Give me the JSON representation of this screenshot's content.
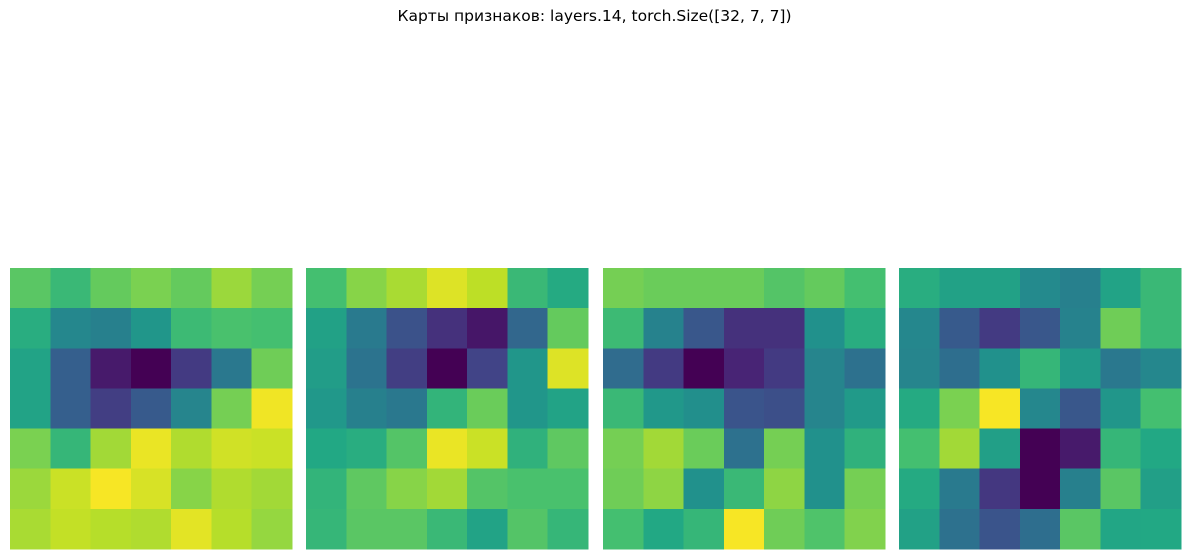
{
  "figure": {
    "title": "Карты признаков: layers.14, torch.Size([32, 7, 7])"
  },
  "chart_data": {
    "type": "heatmap",
    "title": "Карты признаков: layers.14, torch.Size([32, 7, 7])",
    "colormap": "viridis",
    "axes": "off",
    "grid": false,
    "value_range": [
      0,
      1
    ],
    "maps": [
      {
        "values": [
          [
            0.74,
            0.67,
            0.76,
            0.8,
            0.76,
            0.85,
            0.79
          ],
          [
            0.62,
            0.46,
            0.43,
            0.52,
            0.68,
            0.71,
            0.7
          ],
          [
            0.58,
            0.3,
            0.07,
            0.0,
            0.17,
            0.4,
            0.78
          ],
          [
            0.58,
            0.3,
            0.18,
            0.28,
            0.45,
            0.79,
            0.98
          ],
          [
            0.8,
            0.66,
            0.86,
            0.97,
            0.88,
            0.93,
            0.92
          ],
          [
            0.85,
            0.92,
            0.99,
            0.94,
            0.82,
            0.88,
            0.86
          ],
          [
            0.87,
            0.91,
            0.89,
            0.88,
            0.96,
            0.89,
            0.84
          ]
        ]
      },
      {
        "values": [
          [
            0.7,
            0.82,
            0.87,
            0.95,
            0.9,
            0.67,
            0.61
          ],
          [
            0.57,
            0.41,
            0.25,
            0.14,
            0.06,
            0.33,
            0.76
          ],
          [
            0.55,
            0.38,
            0.18,
            0.0,
            0.2,
            0.52,
            0.95
          ],
          [
            0.53,
            0.43,
            0.4,
            0.65,
            0.77,
            0.52,
            0.58
          ],
          [
            0.6,
            0.62,
            0.73,
            0.97,
            0.92,
            0.64,
            0.75
          ],
          [
            0.65,
            0.75,
            0.82,
            0.86,
            0.73,
            0.71,
            0.71
          ],
          [
            0.66,
            0.74,
            0.74,
            0.67,
            0.58,
            0.73,
            0.66
          ]
        ]
      },
      {
        "values": [
          [
            0.79,
            0.77,
            0.77,
            0.77,
            0.73,
            0.76,
            0.7
          ],
          [
            0.68,
            0.44,
            0.27,
            0.14,
            0.14,
            0.5,
            0.62
          ],
          [
            0.35,
            0.17,
            0.0,
            0.1,
            0.17,
            0.45,
            0.37
          ],
          [
            0.67,
            0.53,
            0.49,
            0.26,
            0.24,
            0.45,
            0.54
          ],
          [
            0.79,
            0.86,
            0.77,
            0.37,
            0.79,
            0.5,
            0.64
          ],
          [
            0.78,
            0.83,
            0.5,
            0.67,
            0.83,
            0.5,
            0.79
          ],
          [
            0.7,
            0.6,
            0.66,
            0.99,
            0.78,
            0.72,
            0.81
          ]
        ]
      },
      {
        "values": [
          [
            0.62,
            0.57,
            0.57,
            0.47,
            0.43,
            0.58,
            0.67
          ],
          [
            0.46,
            0.28,
            0.17,
            0.27,
            0.44,
            0.78,
            0.67
          ],
          [
            0.45,
            0.36,
            0.5,
            0.66,
            0.54,
            0.4,
            0.46
          ],
          [
            0.61,
            0.8,
            0.99,
            0.46,
            0.27,
            0.52,
            0.7
          ],
          [
            0.7,
            0.86,
            0.56,
            0.0,
            0.07,
            0.66,
            0.6
          ],
          [
            0.61,
            0.41,
            0.16,
            0.0,
            0.43,
            0.74,
            0.56
          ],
          [
            0.57,
            0.37,
            0.26,
            0.36,
            0.74,
            0.59,
            0.6
          ]
        ]
      }
    ]
  }
}
